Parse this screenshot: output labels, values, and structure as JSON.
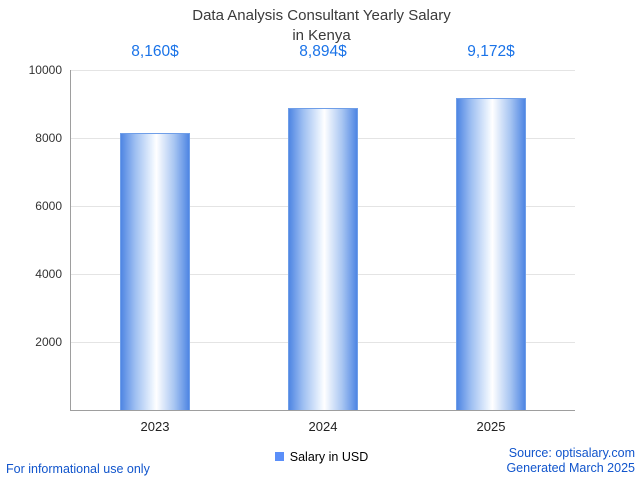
{
  "chart_data": {
    "type": "bar",
    "title": "Data Analysis Consultant Yearly Salary",
    "subtitle": "in Kenya",
    "categories": [
      "2023",
      "2024",
      "2025"
    ],
    "values": [
      8160,
      8894,
      9172
    ],
    "value_labels": [
      "8,160$",
      "8,894$",
      "9,172$"
    ],
    "ylim": [
      0,
      10000
    ],
    "yticks": [
      2000,
      4000,
      6000,
      8000,
      10000
    ],
    "grid": true,
    "legend": {
      "label": "Salary in USD",
      "color": "#5b8ff9",
      "position": "bottom-center"
    },
    "bar_color": "#4f86e3",
    "value_label_color": "#1a73e8"
  },
  "footer": {
    "disclaimer": "For informational use only",
    "source": "Source: optisalary.com",
    "generated": "Generated March 2025"
  }
}
